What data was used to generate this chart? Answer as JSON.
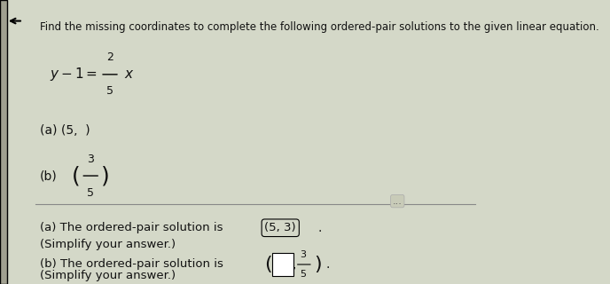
{
  "bg_color": "#d4d8c8",
  "title_text": "Find the missing coordinates to complete the following ordered-pair solutions to the given linear equation.",
  "equation_parts": {
    "main": "y−1=",
    "numerator": "2",
    "denominator": "5",
    "var": "x"
  },
  "part_a_problem": "(a) (5,  )",
  "part_b_label": "(b)",
  "part_b_num": "3",
  "part_b_den": "5",
  "answer_a_prefix": "(a) The ordered-pair solution is ",
  "answer_a_pair": "(5, 3)",
  "answer_a_suffix": ".",
  "answer_a_simp": "(Simplify your answer.)",
  "answer_b_prefix": "(b) The ordered-pair solution is ",
  "answer_b_num": "3",
  "answer_b_den": "5",
  "answer_b_simp": "(Simplify your answer.)",
  "left_bar_color": "#a0a090",
  "divider_color": "#888888",
  "text_color": "#111111",
  "dots_color": "#555555"
}
